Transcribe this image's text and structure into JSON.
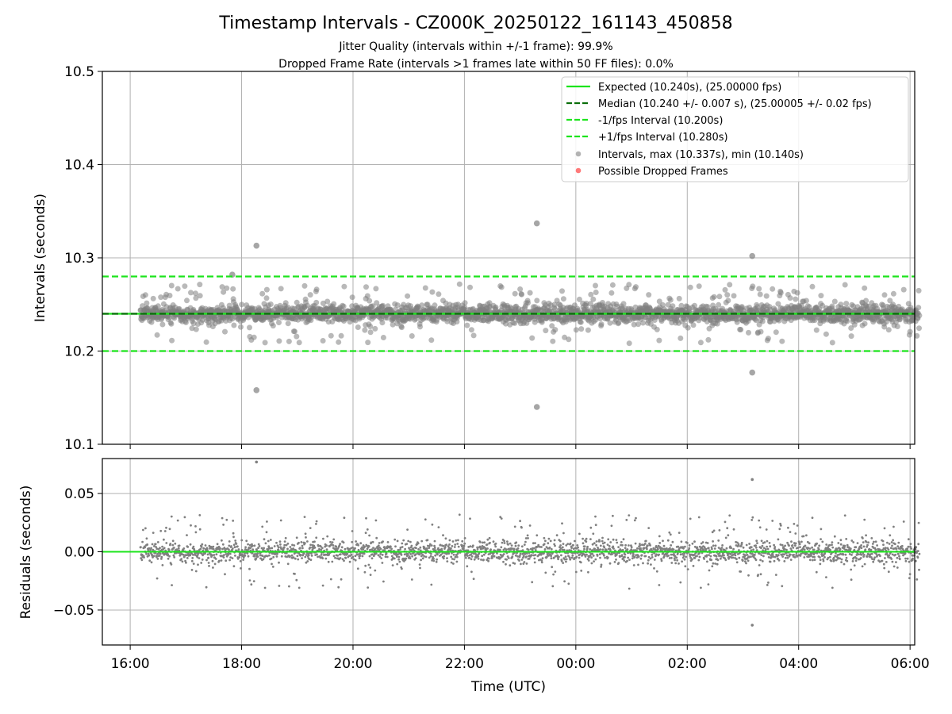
{
  "chart_data": [
    {
      "type": "scatter",
      "panel": "intervals",
      "title": "Timestamp Intervals - CZ000K_20250122_161143_450858",
      "subtitle_lines": [
        "Jitter Quality (intervals within +/-1 frame): 99.9%",
        "Dropped Frame Rate (intervals >1 frames late within 50 FF files): 0.0%"
      ],
      "ylabel": "Intervals (seconds)",
      "ylim": [
        10.1,
        10.5
      ],
      "yticks": [
        "10.1",
        "10.2",
        "10.3",
        "10.4",
        "10.5"
      ],
      "grid": true,
      "legend_position": "top-right",
      "reference_lines": [
        {
          "name": "Expected (10.240s), (25.00000 fps)",
          "y": 10.24,
          "style": "solid",
          "color": "#1ce41c"
        },
        {
          "name": "Median (10.240 +/- 0.007 s), (25.00005 +/- 0.02 fps)",
          "y": 10.24,
          "style": "dashed",
          "color": "#0a6e0a"
        },
        {
          "name": "-1/fps Interval (10.200s)",
          "y": 10.2,
          "style": "dashed",
          "color": "#1ce41c"
        },
        {
          "name": "+1/fps Interval (10.280s)",
          "y": 10.28,
          "style": "dashed",
          "color": "#1ce41c"
        }
      ],
      "series": [
        {
          "name": "Intervals, max (10.337s), min (10.140s)",
          "color": "#808080",
          "y_range": [
            10.14,
            10.337
          ]
        },
        {
          "name": "Possible Dropped Frames",
          "color": "#ff4c4c",
          "values": []
        }
      ],
      "outliers": [
        {
          "x": "18:16",
          "y": 10.313
        },
        {
          "x": "18:16",
          "y": 10.158
        },
        {
          "x": "17:50",
          "y": 10.282
        },
        {
          "x": "23:18",
          "y": 10.337
        },
        {
          "x": "23:18",
          "y": 10.14
        },
        {
          "x": "03:10",
          "y": 10.302
        },
        {
          "x": "03:10",
          "y": 10.177
        }
      ]
    },
    {
      "type": "scatter",
      "panel": "residuals",
      "ylabel": "Residuals (seconds)",
      "xlabel": "Time (UTC)",
      "ylim": [
        -0.08,
        0.08
      ],
      "yticks": [
        "−0.05",
        "0.00",
        "0.05"
      ],
      "xlim": [
        "15:30",
        "06:05"
      ],
      "xticks": [
        "16:00",
        "18:00",
        "20:00",
        "22:00",
        "00:00",
        "02:00",
        "04:00",
        "06:00"
      ],
      "grid": true,
      "reference_lines": [
        {
          "y": 0.0,
          "style": "dashed",
          "color": "#0a6e0a"
        },
        {
          "y": 0.0,
          "style": "solid",
          "color": "#1ce41c"
        }
      ],
      "series": [
        {
          "name": "Residuals",
          "color": "#808080",
          "y_range": [
            -0.063,
            0.077
          ]
        }
      ],
      "outliers": [
        {
          "x": "18:16",
          "y": 0.077
        },
        {
          "x": "03:10",
          "y": 0.062
        },
        {
          "x": "03:10",
          "y": -0.063
        }
      ]
    }
  ]
}
